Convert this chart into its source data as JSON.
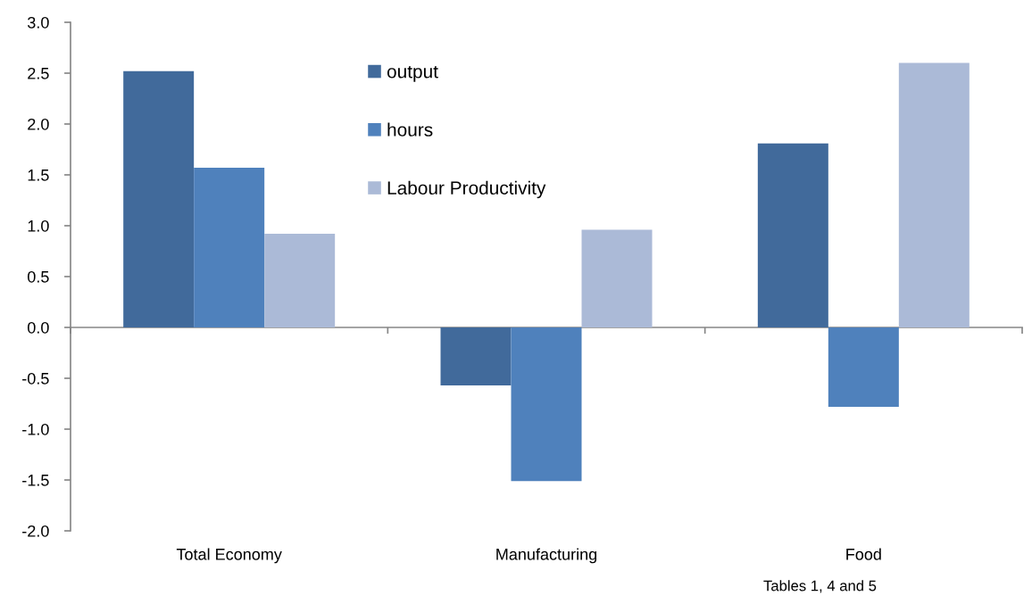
{
  "chart_data": {
    "type": "bar",
    "categories": [
      "Total Economy",
      "Manufacturing",
      "Food"
    ],
    "series": [
      {
        "name": "output",
        "color": "#416a9b",
        "values": [
          2.52,
          -0.57,
          1.81
        ]
      },
      {
        "name": "hours",
        "color": "#4f81bc",
        "values": [
          1.57,
          -1.51,
          -0.78
        ]
      },
      {
        "name": "Labour Productivity",
        "color": "#abbad7",
        "values": [
          0.92,
          0.96,
          2.6
        ]
      }
    ],
    "ylim": [
      -2.0,
      3.0
    ],
    "yticks": [
      {
        "value": -2.0,
        "label": "-2.0"
      },
      {
        "value": -1.5,
        "label": "-1.5"
      },
      {
        "value": -1.0,
        "label": "-1.0"
      },
      {
        "value": -0.5,
        "label": "-0.5"
      },
      {
        "value": 0.0,
        "label": "0.0"
      },
      {
        "value": 0.5,
        "label": "0.5"
      },
      {
        "value": 1.0,
        "label": "1.0"
      },
      {
        "value": 1.5,
        "label": "1.5"
      },
      {
        "value": 2.0,
        "label": "2.0"
      },
      {
        "value": 2.5,
        "label": "2.5"
      },
      {
        "value": 3.0,
        "label": "3.0"
      }
    ],
    "legend": "top",
    "annotations": [
      "Tables 1, 4 and 5"
    ]
  }
}
